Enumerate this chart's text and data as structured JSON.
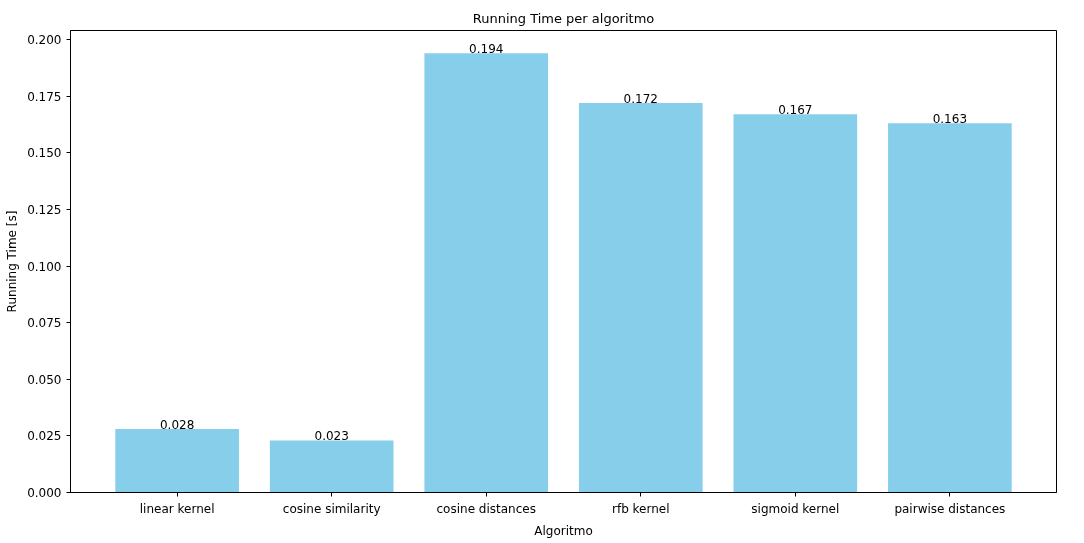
{
  "chart_data": {
    "type": "bar",
    "title": "Running Time per algoritmo",
    "xlabel": "Algoritmo",
    "ylabel": "Running Time [s]",
    "categories": [
      "linear kernel",
      "cosine similarity",
      "cosine distances",
      "rfb kernel",
      "sigmoid kernel",
      "pairwise distances"
    ],
    "values": [
      0.028,
      0.023,
      0.194,
      0.172,
      0.167,
      0.163
    ],
    "color": "#87ceeb",
    "data_labels": true,
    "ylim": [
      0,
      0.204
    ],
    "yticks": [
      {
        "value": 0,
        "label": "0.000"
      },
      {
        "value": 0.025,
        "label": "0.025"
      },
      {
        "value": 0.05,
        "label": "0.050"
      },
      {
        "value": 0.075,
        "label": "0.075"
      },
      {
        "value": 0.1,
        "label": "0.100"
      },
      {
        "value": 0.125,
        "label": "0.125"
      },
      {
        "value": 0.15,
        "label": "0.150"
      },
      {
        "value": 0.175,
        "label": "0.175"
      },
      {
        "value": 0.2,
        "label": "0.200"
      }
    ],
    "grid": false
  }
}
